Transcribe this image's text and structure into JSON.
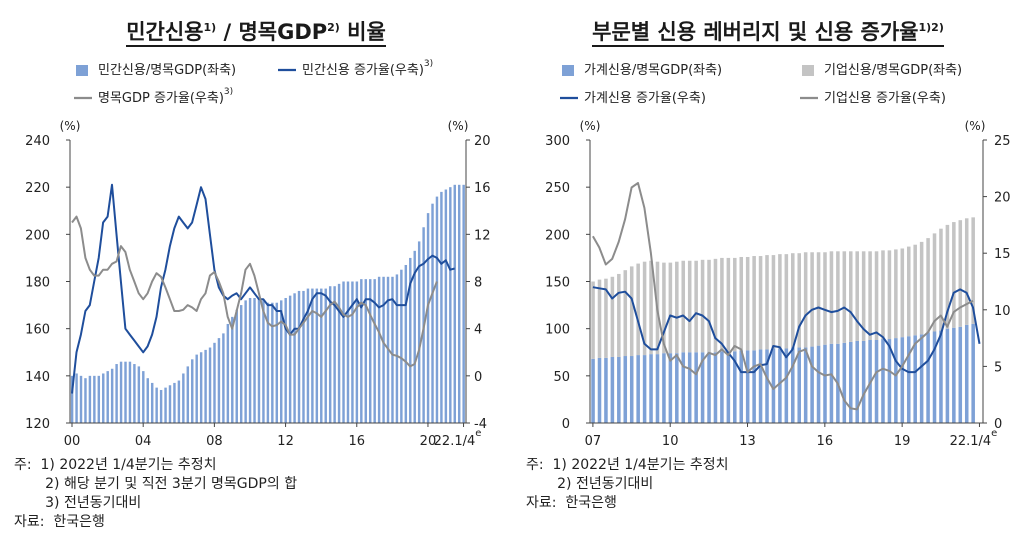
{
  "chart_data": [
    {
      "type": "bar+line",
      "title": "민간신용",
      "title_sup": "1)",
      "title_sep": " / ",
      "title2": "명목GDP",
      "title2_sup": "2)",
      "title3": " 비율",
      "left_unit": "(%)",
      "right_unit": "(%)",
      "ylim_left": [
        120,
        240
      ],
      "left_ticks": [
        120,
        140,
        160,
        180,
        200,
        220,
        240
      ],
      "ylim_right": [
        -4,
        20
      ],
      "right_ticks": [
        -4,
        0,
        4,
        8,
        12,
        16,
        20
      ],
      "x_ticks": [
        "00",
        "04",
        "08",
        "12",
        "16",
        "20",
        "22.1/4"
      ],
      "x_tick_sup": "e",
      "legend": [
        {
          "label": "민간신용/명목GDP(좌축)",
          "kind": "bar",
          "color": "#7ea1d6"
        },
        {
          "label": "민간신용 증가율(우축)",
          "sup": "3)",
          "kind": "line",
          "color": "#1f4e9c"
        },
        {
          "label": "명목GDP 증가율(우축)",
          "sup": "3)",
          "kind": "line",
          "color": "#8c8c8c"
        }
      ],
      "series": [
        {
          "name": "민간신용/명목GDP(좌축)",
          "axis": "left",
          "color": "#7ea1d6",
          "x_start": 2000.0,
          "x_step": 0.25,
          "values": [
            140,
            141,
            140,
            139,
            140,
            140,
            140,
            141,
            142,
            143,
            145,
            146,
            146,
            146,
            145,
            144,
            142,
            139,
            137,
            135,
            134,
            135,
            136,
            137,
            138,
            141,
            144,
            147,
            149,
            150,
            151,
            152,
            154,
            156,
            158,
            162,
            165,
            168,
            170,
            172,
            173,
            173,
            173,
            172,
            171,
            171,
            171,
            172,
            173,
            174,
            175,
            176,
            176,
            177,
            177,
            177,
            177,
            177,
            178,
            178,
            179,
            180,
            180,
            180,
            180,
            181,
            181,
            181,
            181,
            182,
            182,
            182,
            182,
            183,
            185,
            187,
            190,
            193,
            197,
            203,
            209,
            213,
            216,
            218,
            219,
            220,
            221,
            221,
            221
          ]
        },
        {
          "name": "민간신용 증가율(우축)",
          "axis": "right",
          "color": "#1f4e9c",
          "x_start": 2000.0,
          "x_step": 0.25,
          "values": [
            -1.5,
            2,
            3.5,
            5.5,
            6,
            8,
            10,
            13,
            13.5,
            16.2,
            12,
            8,
            4,
            3.5,
            3,
            2.5,
            2,
            2.5,
            3.5,
            5,
            7.5,
            9,
            11,
            12.5,
            13.5,
            13,
            12.5,
            13,
            14.5,
            16,
            15,
            12,
            9,
            7.5,
            6.8,
            6.5,
            6.8,
            7,
            6.5,
            7,
            7.5,
            7,
            6.5,
            6.5,
            6,
            6,
            5.5,
            5.5,
            4,
            3.5,
            4,
            4,
            4.8,
            5.5,
            6.5,
            7,
            7,
            6.8,
            6.3,
            6,
            5.5,
            5,
            5.5,
            6,
            6.5,
            5.8,
            6.5,
            6.5,
            6.2,
            5.8,
            6,
            6.4,
            6.5,
            6,
            6,
            6,
            7.8,
            8.7,
            9.3,
            9.5,
            9.9,
            10.2,
            10,
            9.5,
            9.8,
            9,
            9.1
          ]
        },
        {
          "name": "명목GDP 증가율(우축)",
          "axis": "right",
          "color": "#8c8c8c",
          "x_start": 2000.0,
          "x_step": 0.25,
          "values": [
            13,
            13.5,
            12.5,
            10,
            9,
            8.5,
            8.5,
            9,
            9,
            9.5,
            9.7,
            11,
            10.5,
            9,
            8,
            7,
            6.5,
            7,
            8,
            8.7,
            8.4,
            7.5,
            6.5,
            5.5,
            5.5,
            5.6,
            6,
            5.8,
            5.5,
            6.5,
            7,
            8.5,
            8.8,
            8,
            7,
            5,
            4,
            5.5,
            7,
            9,
            9.5,
            8.5,
            7,
            5.5,
            4.5,
            4.2,
            4.3,
            4.6,
            4.3,
            3.5,
            3.5,
            4,
            4.5,
            5,
            5.5,
            5.3,
            5,
            5.5,
            6,
            6.3,
            5.8,
            5.2,
            5,
            5.2,
            5.8,
            6.2,
            6,
            5.2,
            4.4,
            3.7,
            2.8,
            2.3,
            1.8,
            1.7,
            1.5,
            1.2,
            0.8,
            1,
            2.2,
            4,
            6,
            7,
            8
          ]
        }
      ]
    },
    {
      "type": "bar+line",
      "title": "부문별 신용 레버리지 및 신용 증가율",
      "title_sup": "1)2)",
      "left_unit": "(%)",
      "right_unit": "(%)",
      "ylim_left": [
        0,
        300
      ],
      "left_ticks": [
        0,
        50,
        100,
        150,
        200,
        250,
        300
      ],
      "ylim_right": [
        0,
        25
      ],
      "right_ticks": [
        0,
        5,
        10,
        15,
        20,
        25
      ],
      "x_ticks": [
        "07",
        "10",
        "13",
        "16",
        "19",
        "22.1/4"
      ],
      "x_tick_sup": "e",
      "legend": [
        {
          "label": "가계신용/명목GDP(좌축)",
          "kind": "bar",
          "color": "#7ea1d6"
        },
        {
          "label": "기업신용/명목GDP(좌축)",
          "kind": "bar",
          "color": "#c4c4c4"
        },
        {
          "label": "가계신용 증가율(우축)",
          "kind": "line",
          "color": "#1f4e9c"
        },
        {
          "label": "기업신용 증가율(우축)",
          "kind": "line",
          "color": "#8c8c8c"
        }
      ],
      "series": [
        {
          "name": "가계신용/명목GDP(좌축)",
          "axis": "left",
          "color": "#7ea1d6",
          "x_start": 2007.0,
          "x_step": 0.25,
          "values": [
            68,
            69,
            69,
            70,
            70,
            71,
            71,
            72,
            72,
            73,
            73,
            74,
            74,
            74,
            75,
            75,
            75,
            75,
            75,
            75,
            76,
            76,
            76,
            77,
            77,
            77,
            78,
            78,
            79,
            79,
            79,
            80,
            80,
            80,
            81,
            82,
            83,
            84,
            84,
            85,
            86,
            87,
            87,
            88,
            88,
            89,
            89,
            90,
            91,
            92,
            93,
            94,
            96,
            97,
            98,
            100,
            101,
            102,
            104,
            105
          ]
        },
        {
          "name": "기업신용/명목GDP(좌축)",
          "axis": "left",
          "color": "#c4c4c4",
          "x_start": 2007.0,
          "x_step": 0.25,
          "values": [
            150,
            152,
            153,
            155,
            158,
            162,
            166,
            169,
            171,
            172,
            171,
            170,
            170,
            171,
            172,
            172,
            172,
            173,
            173,
            174,
            175,
            175,
            175,
            176,
            176,
            177,
            177,
            178,
            178,
            179,
            179,
            180,
            180,
            181,
            181,
            181,
            181,
            182,
            182,
            182,
            182,
            182,
            182,
            182,
            182,
            183,
            183,
            184,
            185,
            187,
            189,
            192,
            196,
            201,
            206,
            210,
            213,
            215,
            217,
            218
          ]
        },
        {
          "name": "가계신용 증가율(우축)",
          "axis": "right",
          "color": "#1f4e9c",
          "x_start": 2007.0,
          "x_step": 0.25,
          "values": [
            12,
            11.9,
            11.8,
            11,
            11.5,
            11.6,
            11,
            9,
            7,
            6.5,
            6.5,
            8,
            9.5,
            9.3,
            9.5,
            9,
            9.7,
            9.5,
            9,
            7.5,
            7,
            6.2,
            5.5,
            4.5,
            4.5,
            4.5,
            5.1,
            5.2,
            6.8,
            6.7,
            5.8,
            6.5,
            8.5,
            9.5,
            10,
            10.2,
            10,
            9.8,
            9.9,
            10.2,
            9.8,
            9,
            8.3,
            7.8,
            8,
            7.6,
            6.8,
            5.5,
            4.8,
            4.5,
            4.5,
            5,
            5.5,
            6.5,
            7.8,
            9.8,
            11.5,
            11.8,
            11.5,
            10.2,
            7
          ]
        },
        {
          "name": "기업신용 증가율(우축)",
          "axis": "right",
          "color": "#8c8c8c",
          "x_start": 2007.0,
          "x_step": 0.25,
          "values": [
            16.5,
            15.5,
            14,
            14.5,
            16,
            18,
            20.8,
            21.2,
            19,
            15,
            10,
            7,
            5.5,
            6,
            5,
            4.8,
            4.3,
            5.5,
            6.2,
            6,
            6.5,
            6,
            6.8,
            6.5,
            4.5,
            5,
            5.2,
            4,
            3,
            3.5,
            4,
            5,
            6.3,
            6.5,
            5,
            4.5,
            4.2,
            4.3,
            3.5,
            2,
            1.3,
            1.2,
            2.5,
            3.5,
            4.5,
            4.8,
            4.6,
            4.2,
            5,
            6,
            7,
            7.5,
            8,
            9,
            9.5,
            8.5,
            9.8,
            10.2,
            10.5,
            10.8
          ]
        }
      ]
    }
  ],
  "notes_left": [
    "주:  1) 2022년 1/4분기는 추정치",
    "       2) 해당 분기 및 직전 3분기 명목GDP의 합",
    "       3) 전년동기대비",
    "자료:  한국은행"
  ],
  "notes_right": [
    "주:  1) 2022년 1/4분기는 추정치",
    "       2) 전년동기대비",
    "자료:  한국은행"
  ]
}
